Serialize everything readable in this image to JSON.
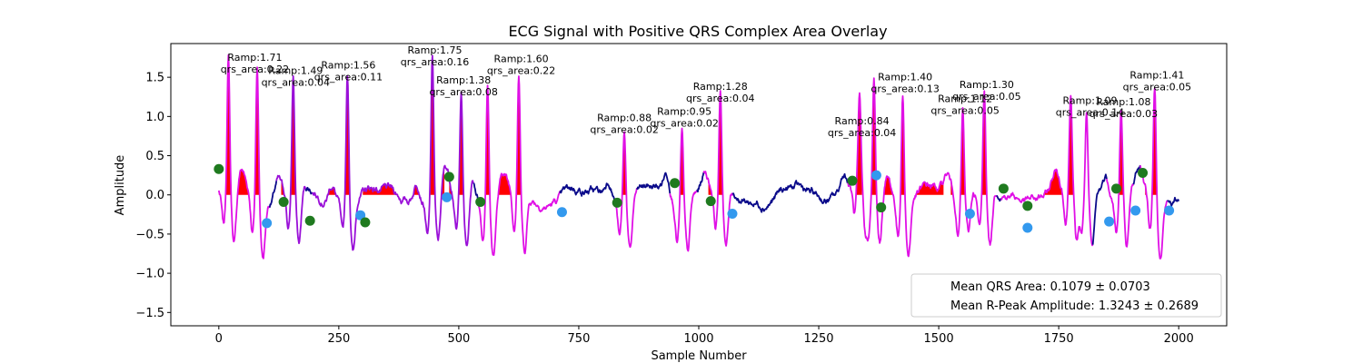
{
  "chart_data": {
    "type": "line",
    "title": "ECG Signal with Positive QRS Complex Area Overlay",
    "xlabel": "Sample Number",
    "ylabel": "Amplitude",
    "xlim": [
      -100,
      2100
    ],
    "ylim": [
      -1.67,
      1.93
    ],
    "xticks": [
      0,
      250,
      500,
      750,
      1000,
      1250,
      1500,
      1750,
      2000
    ],
    "yticks": [
      -1.5,
      -1.0,
      -0.5,
      0.0,
      0.5,
      1.0,
      1.5
    ],
    "grid": false,
    "legend_position": "lower-right",
    "legend": [
      "Mean QRS Area: 0.1079 ± 0.0703",
      "Mean R-Peak Amplitude: 1.3243 ± 0.2689"
    ],
    "colors": {
      "signal_primary": "#9a10d8",
      "signal_secondary": "#e010e6",
      "signal_baseline": "#0a0a8a",
      "area_fill": "#ff0000",
      "onset_marker": "#1f7a1f",
      "offset_marker": "#3399ee"
    },
    "beats": [
      {
        "r_x": 20,
        "r_amp": 1.71,
        "qrs_area": 0.22,
        "region": [
          0,
          85
        ],
        "color": "secondary"
      },
      {
        "r_x": 80,
        "r_amp": 1.71,
        "qrs_area": 0.22,
        "region": [
          0,
          85
        ],
        "color": "secondary"
      },
      {
        "r_x": 155,
        "r_amp": 1.49,
        "qrs_area": 0.04,
        "region": [
          130,
          160
        ],
        "color": "primary"
      },
      {
        "r_x": 268,
        "r_amp": 1.56,
        "qrs_area": 0.11,
        "region": [
          205,
          275
        ],
        "color": "primary"
      },
      {
        "r_x": 445,
        "r_amp": 1.75,
        "qrs_area": 0.16,
        "region": [
          300,
          470
        ],
        "color": "primary"
      },
      {
        "r_x": 505,
        "r_amp": 1.38,
        "qrs_area": 0.08,
        "region": [
          480,
          510
        ],
        "color": "primary"
      },
      {
        "r_x": 560,
        "r_amp": 1.6,
        "qrs_area": 0.22,
        "region": [
          550,
          690
        ],
        "color": "primary"
      },
      {
        "r_x": 625,
        "r_amp": 1.6,
        "qrs_area": 0.22,
        "region": [
          550,
          690
        ],
        "color": "secondary"
      },
      {
        "r_x": 845,
        "r_amp": 0.88,
        "qrs_area": 0.02,
        "region": [
          835,
          850
        ],
        "color": "secondary"
      },
      {
        "r_x": 965,
        "r_amp": 0.95,
        "qrs_area": 0.02,
        "region": [
          950,
          975
        ],
        "color": "secondary"
      },
      {
        "r_x": 1045,
        "r_amp": 1.28,
        "qrs_area": 0.04,
        "region": [
          1020,
          1050
        ],
        "color": "secondary"
      },
      {
        "r_x": 1335,
        "r_amp": 0.84,
        "qrs_area": 0.04,
        "region": [
          1320,
          1340
        ],
        "color": "secondary"
      },
      {
        "r_x": 1365,
        "r_amp": 1.4,
        "qrs_area": 0.13,
        "region": [
          1360,
          1510
        ],
        "color": "secondary"
      },
      {
        "r_x": 1425,
        "r_amp": 1.4,
        "qrs_area": 0.13,
        "region": [
          1360,
          1510
        ],
        "color": "secondary"
      },
      {
        "r_x": 1550,
        "r_amp": 1.12,
        "qrs_area": 0.05,
        "region": [
          1525,
          1560
        ],
        "color": "secondary"
      },
      {
        "r_x": 1595,
        "r_amp": 1.3,
        "qrs_area": 0.05,
        "region": [
          1580,
          1600
        ],
        "color": "secondary"
      },
      {
        "r_x": 1775,
        "r_amp": 1.09,
        "qrs_area": 0.14,
        "region": [
          1640,
          1800
        ],
        "color": "secondary"
      },
      {
        "r_x": 1808,
        "r_amp": 1.09,
        "qrs_area": 0.14,
        "region": [
          1640,
          1800
        ],
        "color": "secondary"
      },
      {
        "r_x": 1880,
        "r_amp": 1.08,
        "qrs_area": 0.03,
        "region": [
          1860,
          1885
        ],
        "color": "secondary"
      },
      {
        "r_x": 1950,
        "r_amp": 1.41,
        "qrs_area": 0.05,
        "region": [
          1930,
          1955
        ],
        "color": "secondary"
      }
    ],
    "onset_markers": [
      {
        "x": 0,
        "y": 0.33
      },
      {
        "x": 135,
        "y": -0.09
      },
      {
        "x": 190,
        "y": -0.33
      },
      {
        "x": 305,
        "y": -0.35
      },
      {
        "x": 480,
        "y": 0.23
      },
      {
        "x": 545,
        "y": -0.09
      },
      {
        "x": 830,
        "y": -0.1
      },
      {
        "x": 950,
        "y": 0.15
      },
      {
        "x": 1025,
        "y": -0.08
      },
      {
        "x": 1320,
        "y": 0.18
      },
      {
        "x": 1380,
        "y": -0.16
      },
      {
        "x": 1635,
        "y": 0.08
      },
      {
        "x": 1685,
        "y": -0.14
      },
      {
        "x": 1870,
        "y": 0.08
      },
      {
        "x": 1925,
        "y": 0.28
      }
    ],
    "offset_markers": [
      {
        "x": 100,
        "y": -0.36
      },
      {
        "x": 295,
        "y": -0.26
      },
      {
        "x": 475,
        "y": -0.03
      },
      {
        "x": 715,
        "y": -0.22
      },
      {
        "x": 1070,
        "y": -0.24
      },
      {
        "x": 1370,
        "y": 0.25
      },
      {
        "x": 1565,
        "y": -0.24
      },
      {
        "x": 1685,
        "y": -0.42
      },
      {
        "x": 1855,
        "y": -0.34
      },
      {
        "x": 1910,
        "y": -0.2
      },
      {
        "x": 1980,
        "y": -0.2
      }
    ],
    "annotations": [
      {
        "text": [
          "Ramp:1.71",
          "qrs_area:0.22"
        ],
        "x": 75,
        "y": 1.55
      },
      {
        "text": [
          "Ramp:1.49",
          "qrs_area:0.04"
        ],
        "x": 160,
        "y": 1.38
      },
      {
        "text": [
          "Ramp:1.56",
          "qrs_area:0.11"
        ],
        "x": 270,
        "y": 1.45
      },
      {
        "text": [
          "Ramp:1.75",
          "qrs_area:0.16"
        ],
        "x": 450,
        "y": 1.64
      },
      {
        "text": [
          "Ramp:1.38",
          "qrs_area:0.08"
        ],
        "x": 510,
        "y": 1.26
      },
      {
        "text": [
          "Ramp:1.60",
          "qrs_area:0.22"
        ],
        "x": 630,
        "y": 1.53
      },
      {
        "text": [
          "Ramp:0.88",
          "qrs_area:0.02"
        ],
        "x": 845,
        "y": 0.78
      },
      {
        "text": [
          "Ramp:0.95",
          "qrs_area:0.02"
        ],
        "x": 970,
        "y": 0.86
      },
      {
        "text": [
          "Ramp:1.28",
          "qrs_area:0.04"
        ],
        "x": 1045,
        "y": 1.18
      },
      {
        "text": [
          "Ramp:0.84",
          "qrs_area:0.04"
        ],
        "x": 1340,
        "y": 0.74
      },
      {
        "text": [
          "Ramp:1.40",
          "qrs_area:0.13"
        ],
        "x": 1430,
        "y": 1.3
      },
      {
        "text": [
          "Ramp:1.12",
          "qrs_area:0.05"
        ],
        "x": 1555,
        "y": 1.02
      },
      {
        "text": [
          "Ramp:1.30",
          "qrs_area:0.05"
        ],
        "x": 1600,
        "y": 1.2
      },
      {
        "text": [
          "Ramp:1.09",
          "qrs_area:0.14"
        ],
        "x": 1815,
        "y": 1.0
      },
      {
        "text": [
          "Ramp:1.08",
          "qrs_area:0.03"
        ],
        "x": 1885,
        "y": 0.98
      },
      {
        "text": [
          "Ramp:1.41",
          "qrs_area:0.05"
        ],
        "x": 1955,
        "y": 1.32
      }
    ]
  }
}
